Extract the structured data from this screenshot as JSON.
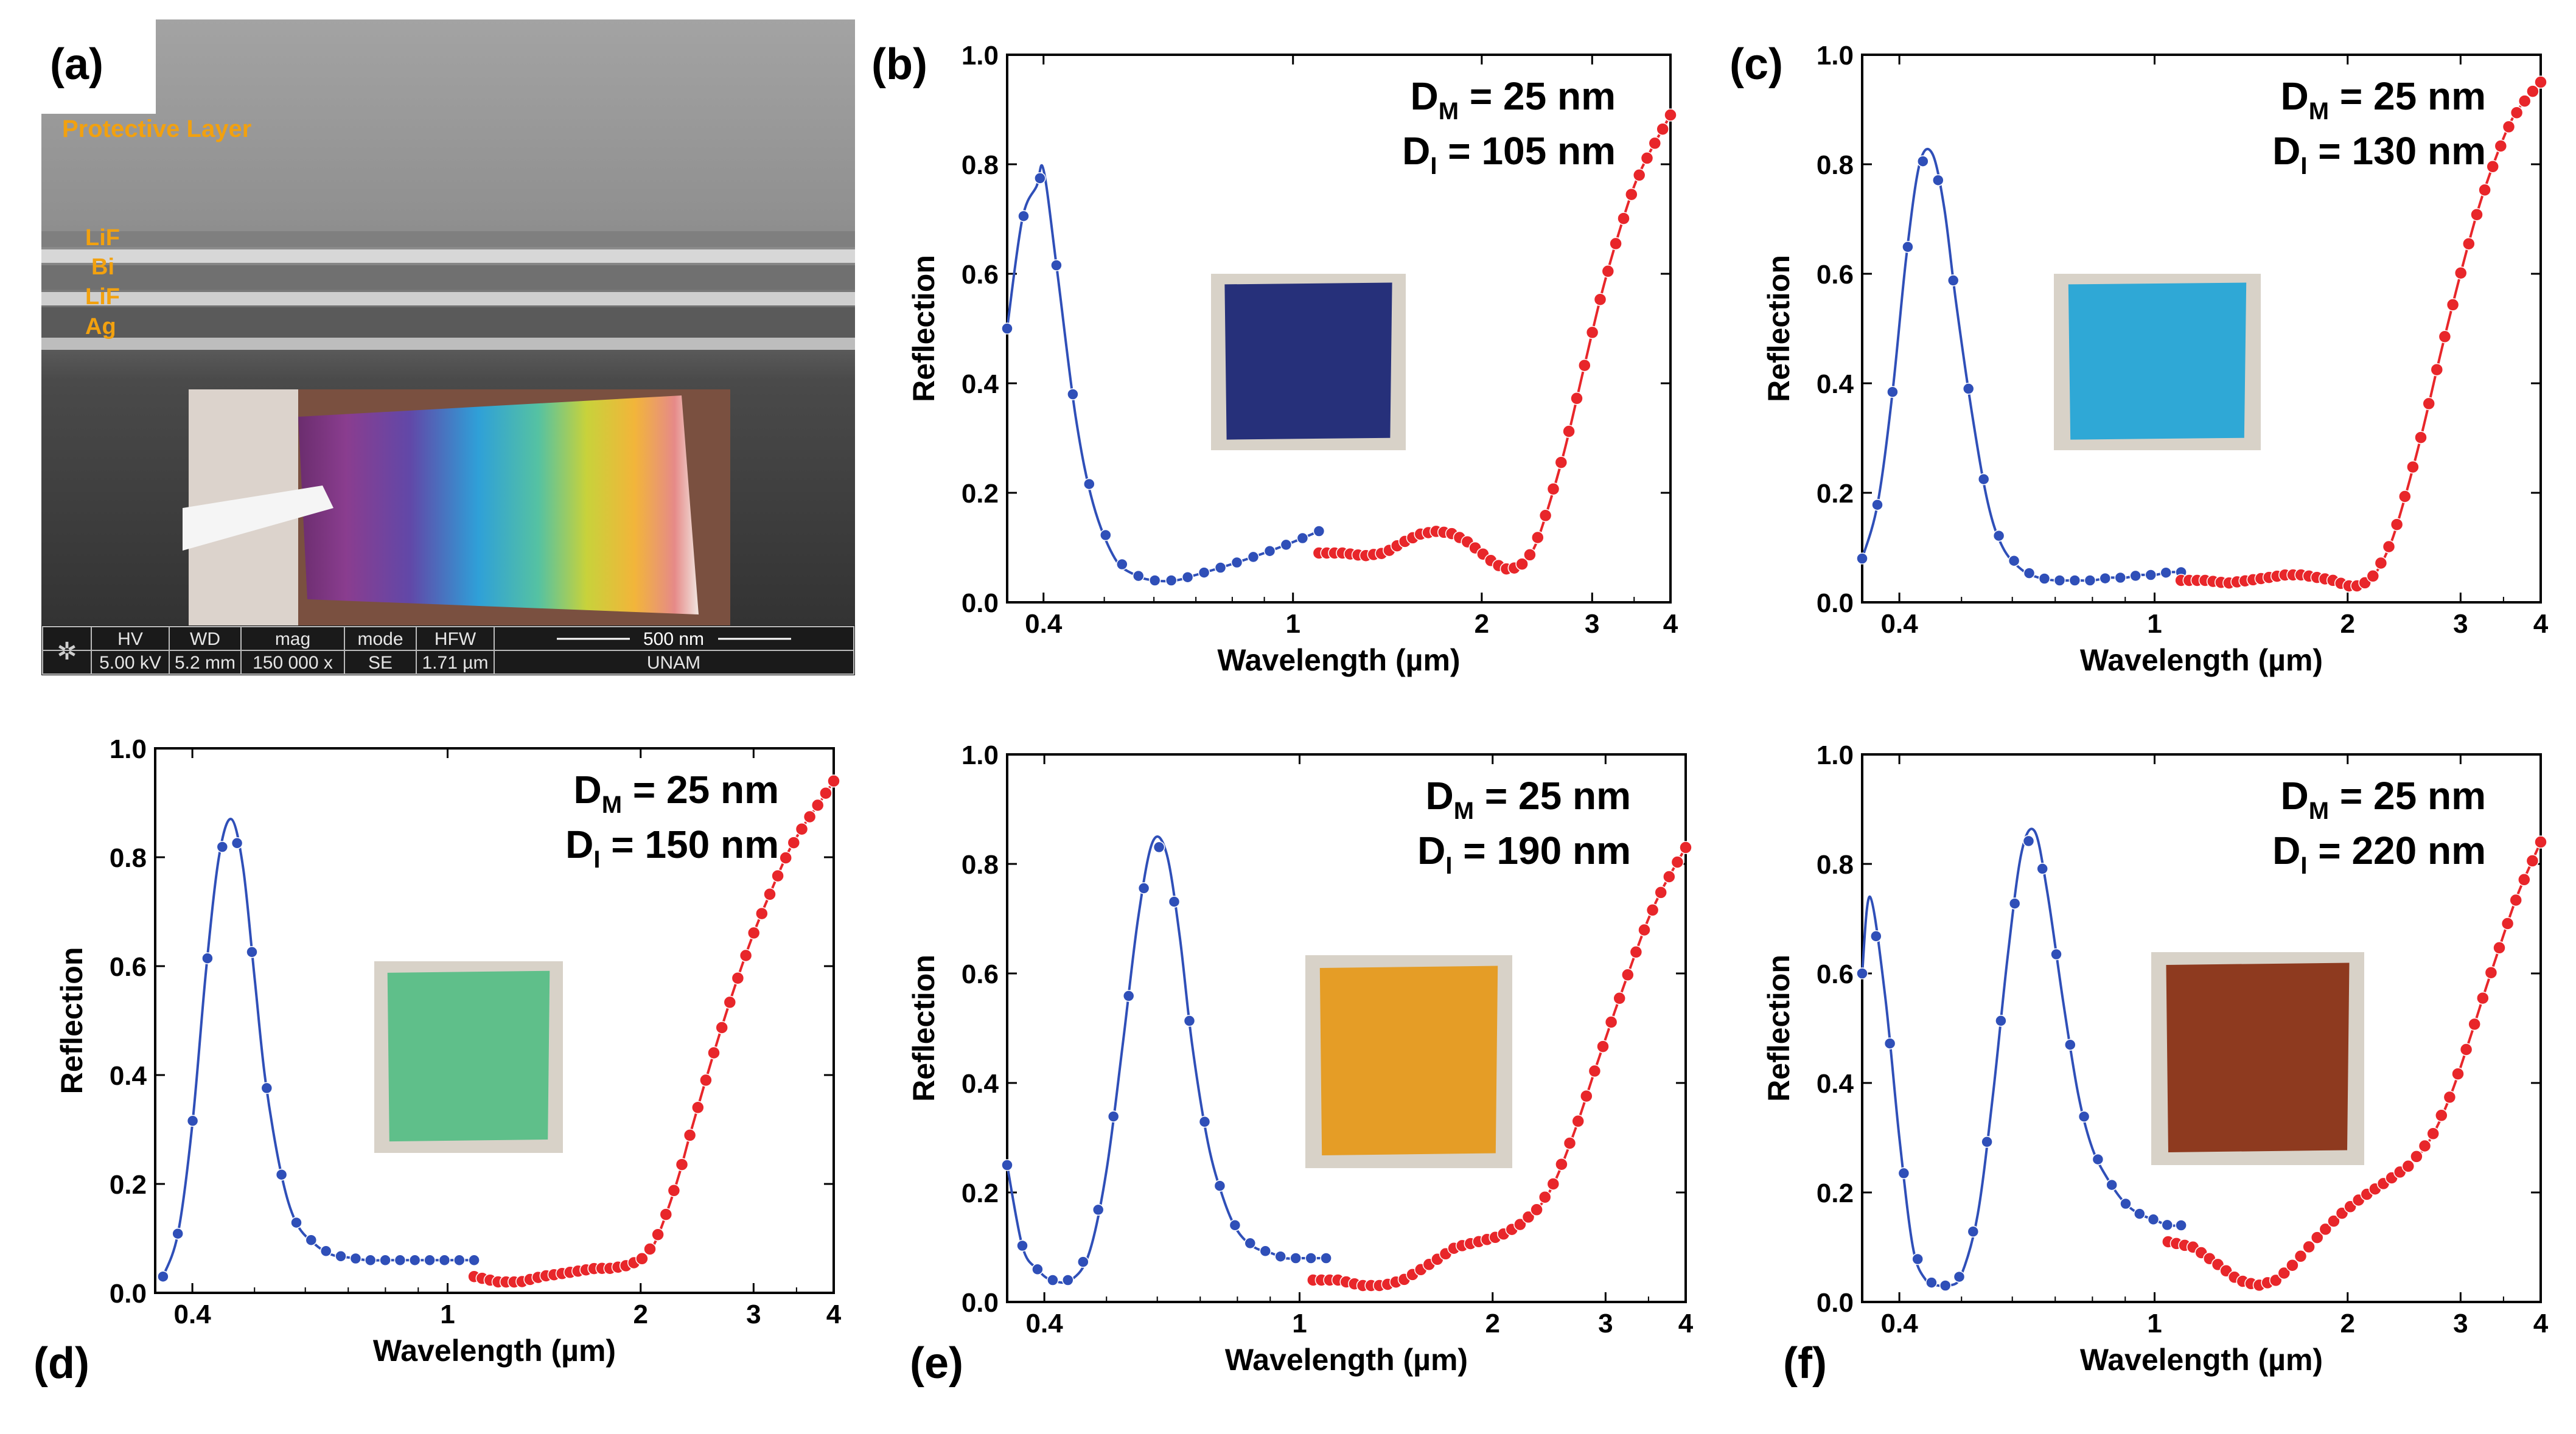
{
  "panel_letters": {
    "a": "(a)",
    "b": "(b)",
    "c": "(c)",
    "d": "(d)",
    "e": "(e)",
    "f": "(f)"
  },
  "sem": {
    "layer_labels": [
      "Protective Layer",
      "LiF",
      "Bi",
      "LiF",
      "Ag"
    ],
    "info_headers": [
      "HV",
      "WD",
      "mag",
      "mode",
      "HFW"
    ],
    "info_values": [
      "5.00 kV",
      "5.2 mm",
      "150 000 x",
      "SE",
      "1.71 µm"
    ],
    "scale_bar": "500 nm",
    "institution": "UNAM",
    "colors": {
      "label": "#f2a10f",
      "background_top": "#9b9b9b",
      "background_bottom": "#3b3b3b"
    }
  },
  "colors": {
    "visible_series": "#2f4fb8",
    "ir_series": "#e8262a",
    "axis": "#000000"
  },
  "chart_data": [
    {
      "panel": "b",
      "type": "line",
      "xscale": "log",
      "xlabel": "Wavelength (µm)",
      "ylabel": "Reflection",
      "xlim": [
        0.35,
        4.0
      ],
      "ylim": [
        0.0,
        1.0
      ],
      "xticks": [
        0.4,
        1,
        2,
        3,
        4
      ],
      "xtick_labels": [
        "0.4",
        "1",
        "2",
        "3",
        "4"
      ],
      "yticks": [
        0.0,
        0.2,
        0.4,
        0.6,
        0.8,
        1.0
      ],
      "ytick_labels": [
        "0.0",
        "0.2",
        "0.4",
        "0.6",
        "0.8",
        "1.0"
      ],
      "annotation": {
        "dm_label": "D",
        "dm_sub": "M",
        "dm_value": "= 25 nm",
        "di_label": "D",
        "di_sub": "I",
        "di_value": "= 105 nm"
      },
      "inset_color": "#26307a",
      "series": [
        {
          "name": "visible",
          "color": "#2f4fb8",
          "x": [
            0.35,
            0.37,
            0.39,
            0.4,
            0.42,
            0.45,
            0.48,
            0.52,
            0.56,
            0.6,
            0.65,
            0.7,
            0.75,
            0.8,
            0.85,
            0.9,
            0.95,
            1.0,
            1.05,
            1.1
          ],
          "y": [
            0.5,
            0.7,
            0.76,
            0.79,
            0.61,
            0.34,
            0.18,
            0.08,
            0.05,
            0.04,
            0.04,
            0.05,
            0.06,
            0.07,
            0.08,
            0.09,
            0.1,
            0.11,
            0.12,
            0.13
          ]
        },
        {
          "name": "infrared",
          "color": "#e8262a",
          "x": [
            1.1,
            1.2,
            1.3,
            1.4,
            1.5,
            1.6,
            1.7,
            1.8,
            1.9,
            2.0,
            2.1,
            2.2,
            2.3,
            2.4,
            2.5,
            2.7,
            2.9,
            3.1,
            3.3,
            3.5,
            3.7,
            4.0
          ],
          "y": [
            0.09,
            0.09,
            0.085,
            0.09,
            0.11,
            0.125,
            0.13,
            0.125,
            0.11,
            0.09,
            0.07,
            0.06,
            0.065,
            0.09,
            0.14,
            0.27,
            0.42,
            0.56,
            0.67,
            0.76,
            0.82,
            0.89
          ]
        }
      ]
    },
    {
      "panel": "c",
      "type": "line",
      "xscale": "log",
      "xlabel": "Wavelength (µm)",
      "ylabel": "Reflection",
      "xlim": [
        0.35,
        4.0
      ],
      "ylim": [
        0.0,
        1.0
      ],
      "xticks": [
        0.4,
        1,
        2,
        3,
        4
      ],
      "xtick_labels": [
        "0.4",
        "1",
        "2",
        "3",
        "4"
      ],
      "yticks": [
        0.0,
        0.2,
        0.4,
        0.6,
        0.8,
        1.0
      ],
      "ytick_labels": [
        "0.0",
        "0.2",
        "0.4",
        "0.6",
        "0.8",
        "1.0"
      ],
      "annotation": {
        "dm_label": "D",
        "dm_sub": "M",
        "dm_value": "= 25 nm",
        "di_label": "D",
        "di_sub": "I",
        "di_value": "= 130 nm"
      },
      "inset_color": "#2fa8d6",
      "series": [
        {
          "name": "visible",
          "color": "#2f4fb8",
          "x": [
            0.35,
            0.37,
            0.39,
            0.41,
            0.43,
            0.45,
            0.47,
            0.49,
            0.52,
            0.55,
            0.58,
            0.62,
            0.66,
            0.7,
            0.75,
            0.8,
            0.85,
            0.9,
            0.95,
            1.0,
            1.05,
            1.1
          ],
          "y": [
            0.08,
            0.18,
            0.38,
            0.63,
            0.8,
            0.82,
            0.72,
            0.55,
            0.34,
            0.18,
            0.1,
            0.06,
            0.045,
            0.04,
            0.04,
            0.04,
            0.045,
            0.045,
            0.05,
            0.05,
            0.055,
            0.055
          ]
        },
        {
          "name": "infrared",
          "color": "#e8262a",
          "x": [
            1.1,
            1.2,
            1.3,
            1.4,
            1.5,
            1.6,
            1.7,
            1.8,
            1.9,
            2.0,
            2.1,
            2.2,
            2.3,
            2.4,
            2.6,
            2.8,
            3.0,
            3.2,
            3.4,
            3.6,
            3.8,
            4.0
          ],
          "y": [
            0.04,
            0.04,
            0.035,
            0.04,
            0.045,
            0.05,
            0.05,
            0.045,
            0.04,
            0.03,
            0.03,
            0.05,
            0.09,
            0.15,
            0.3,
            0.46,
            0.6,
            0.72,
            0.81,
            0.88,
            0.92,
            0.95
          ]
        }
      ]
    },
    {
      "panel": "d",
      "type": "line",
      "xscale": "log",
      "xlabel": "Wavelength (µm)",
      "ylabel": "Reflection",
      "xlim": [
        0.35,
        4.0
      ],
      "ylim": [
        0.0,
        1.0
      ],
      "xticks": [
        0.4,
        1,
        2,
        3,
        4
      ],
      "xtick_labels": [
        "0.4",
        "1",
        "2",
        "3",
        "4"
      ],
      "yticks": [
        0.0,
        0.2,
        0.4,
        0.6,
        0.8,
        1.0
      ],
      "ytick_labels": [
        "0.0",
        "0.2",
        "0.4",
        "0.6",
        "0.8",
        "1.0"
      ],
      "annotation": {
        "dm_label": "D",
        "dm_sub": "M",
        "dm_value": "= 25 nm",
        "di_label": "D",
        "di_sub": "I",
        "di_value": "= 150 nm"
      },
      "inset_color": "#5fbf8a",
      "series": [
        {
          "name": "visible",
          "color": "#2f4fb8",
          "x": [
            0.36,
            0.38,
            0.4,
            0.42,
            0.44,
            0.46,
            0.48,
            0.5,
            0.52,
            0.55,
            0.58,
            0.62,
            0.66,
            0.7,
            0.75,
            0.8,
            0.85,
            0.9,
            0.95,
            1.0,
            1.05,
            1.1
          ],
          "y": [
            0.03,
            0.11,
            0.31,
            0.59,
            0.8,
            0.87,
            0.78,
            0.58,
            0.39,
            0.22,
            0.13,
            0.09,
            0.07,
            0.065,
            0.06,
            0.06,
            0.06,
            0.06,
            0.06,
            0.06,
            0.06,
            0.06
          ]
        },
        {
          "name": "infrared",
          "color": "#e8262a",
          "x": [
            1.1,
            1.2,
            1.3,
            1.4,
            1.5,
            1.6,
            1.7,
            1.8,
            1.9,
            2.0,
            2.1,
            2.2,
            2.3,
            2.4,
            2.6,
            2.8,
            3.0,
            3.2,
            3.4,
            3.6,
            3.8,
            4.0
          ],
          "y": [
            0.03,
            0.02,
            0.02,
            0.03,
            0.035,
            0.04,
            0.045,
            0.045,
            0.05,
            0.06,
            0.09,
            0.15,
            0.22,
            0.3,
            0.44,
            0.56,
            0.66,
            0.74,
            0.81,
            0.86,
            0.9,
            0.94
          ]
        }
      ]
    },
    {
      "panel": "e",
      "type": "line",
      "xscale": "log",
      "xlabel": "Wavelength (µm)",
      "ylabel": "Reflection",
      "xlim": [
        0.35,
        4.0
      ],
      "ylim": [
        0.0,
        1.0
      ],
      "xticks": [
        0.4,
        1,
        2,
        3,
        4
      ],
      "xtick_labels": [
        "0.4",
        "1",
        "2",
        "3",
        "4"
      ],
      "yticks": [
        0.0,
        0.2,
        0.4,
        0.6,
        0.8,
        1.0
      ],
      "ytick_labels": [
        "0.0",
        "0.2",
        "0.4",
        "0.6",
        "0.8",
        "1.0"
      ],
      "annotation": {
        "dm_label": "D",
        "dm_sub": "M",
        "dm_value": "= 25 nm",
        "di_label": "D",
        "di_sub": "I",
        "di_value": "= 190 nm"
      },
      "inset_color": "#e59d26",
      "series": [
        {
          "name": "visible",
          "color": "#2f4fb8",
          "x": [
            0.35,
            0.37,
            0.39,
            0.41,
            0.44,
            0.47,
            0.5,
            0.53,
            0.56,
            0.59,
            0.62,
            0.65,
            0.68,
            0.72,
            0.76,
            0.8,
            0.85,
            0.9,
            0.95,
            1.0,
            1.05,
            1.1
          ],
          "y": [
            0.25,
            0.1,
            0.06,
            0.04,
            0.04,
            0.09,
            0.24,
            0.47,
            0.7,
            0.84,
            0.82,
            0.67,
            0.47,
            0.29,
            0.19,
            0.13,
            0.1,
            0.09,
            0.08,
            0.08,
            0.08,
            0.08
          ]
        },
        {
          "name": "infrared",
          "color": "#e8262a",
          "x": [
            1.05,
            1.15,
            1.25,
            1.35,
            1.45,
            1.55,
            1.65,
            1.75,
            1.9,
            2.05,
            2.2,
            2.35,
            2.5,
            2.7,
            2.9,
            3.1,
            3.3,
            3.5,
            3.7,
            4.0
          ],
          "y": [
            0.04,
            0.04,
            0.03,
            0.03,
            0.04,
            0.06,
            0.08,
            0.1,
            0.11,
            0.12,
            0.14,
            0.17,
            0.22,
            0.32,
            0.43,
            0.53,
            0.62,
            0.7,
            0.76,
            0.83
          ]
        }
      ]
    },
    {
      "panel": "f",
      "type": "line",
      "xscale": "log",
      "xlabel": "Wavelength (µm)",
      "ylabel": "Reflection",
      "xlim": [
        0.35,
        4.0
      ],
      "ylim": [
        0.0,
        1.0
      ],
      "xticks": [
        0.4,
        1,
        2,
        3,
        4
      ],
      "xtick_labels": [
        "0.4",
        "1",
        "2",
        "3",
        "4"
      ],
      "yticks": [
        0.0,
        0.2,
        0.4,
        0.6,
        0.8,
        1.0
      ],
      "ytick_labels": [
        "0.0",
        "0.2",
        "0.4",
        "0.6",
        "0.8",
        "1.0"
      ],
      "annotation": {
        "dm_label": "D",
        "dm_sub": "M",
        "dm_value": "= 25 nm",
        "di_label": "D",
        "di_sub": "I",
        "di_value": "= 220 nm"
      },
      "inset_color": "#8e3a1f",
      "series": [
        {
          "name": "visible",
          "color": "#2f4fb8",
          "x": [
            0.35,
            0.36,
            0.38,
            0.4,
            0.42,
            0.44,
            0.46,
            0.48,
            0.5,
            0.53,
            0.56,
            0.59,
            0.62,
            0.65,
            0.68,
            0.72,
            0.76,
            0.8,
            0.85,
            0.9,
            0.95,
            1.0,
            1.05,
            1.1
          ],
          "y": [
            0.6,
            0.74,
            0.56,
            0.3,
            0.1,
            0.04,
            0.03,
            0.03,
            0.05,
            0.16,
            0.38,
            0.63,
            0.82,
            0.86,
            0.75,
            0.55,
            0.38,
            0.28,
            0.22,
            0.18,
            0.16,
            0.15,
            0.14,
            0.14
          ]
        },
        {
          "name": "infrared",
          "color": "#e8262a",
          "x": [
            1.05,
            1.15,
            1.25,
            1.35,
            1.45,
            1.55,
            1.65,
            1.8,
            1.95,
            2.1,
            2.3,
            2.5,
            2.7,
            2.9,
            3.1,
            3.3,
            3.5,
            3.7,
            4.0
          ],
          "y": [
            0.11,
            0.1,
            0.07,
            0.04,
            0.03,
            0.04,
            0.07,
            0.12,
            0.16,
            0.19,
            0.22,
            0.25,
            0.3,
            0.38,
            0.48,
            0.58,
            0.67,
            0.75,
            0.84
          ]
        }
      ]
    }
  ]
}
